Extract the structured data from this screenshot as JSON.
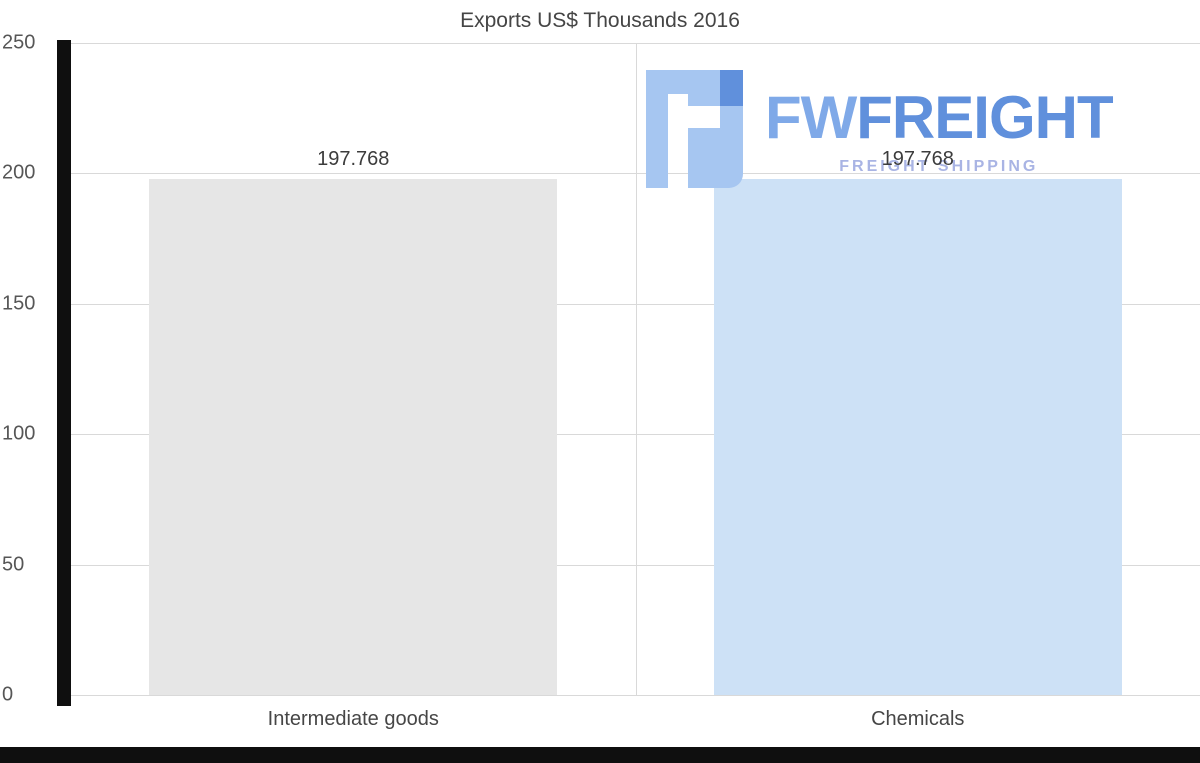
{
  "chart_data": {
    "type": "bar",
    "title": "Exports US$ Thousands 2016",
    "categories": [
      "Intermediate goods",
      "Chemicals"
    ],
    "values": [
      197.768,
      197.768
    ],
    "value_labels": [
      "197.768",
      "197.768"
    ],
    "bar_colors": [
      "#e6e6e6",
      "#cde1f6"
    ],
    "ylim": [
      0,
      250
    ],
    "yticks": [
      0,
      50,
      100,
      150,
      200,
      250
    ],
    "grid": true,
    "grid_color": "#d9d9d9",
    "legend": false,
    "xlabel": "",
    "ylabel": ""
  },
  "watermark": {
    "brand_fw": "FW",
    "brand_freight": "FREIGHT",
    "subtitle": "FREIGHT SHIPPING",
    "colors": {
      "light_blue": "#a6c6f1",
      "blue": "#6090dc",
      "subtitle": "#a9b4e4"
    }
  }
}
